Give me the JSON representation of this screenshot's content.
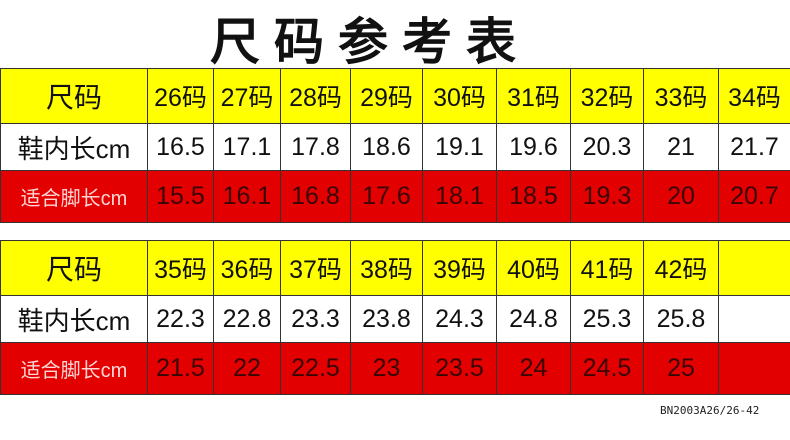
{
  "title": "尺码参考表",
  "tables": [
    {
      "labels": [
        "尺码",
        "鞋内长cm",
        "适合脚长cm"
      ],
      "sizes": [
        "26码",
        "27码",
        "28码",
        "29码",
        "30码",
        "31码",
        "32码",
        "33码",
        "34码"
      ],
      "inner": [
        "16.5",
        "17.1",
        "17.8",
        "18.6",
        "19.1",
        "19.6",
        "20.3",
        "21",
        "21.7"
      ],
      "foot": [
        "15.5",
        "16.1",
        "16.8",
        "17.6",
        "18.1",
        "18.5",
        "19.3",
        "20",
        "20.7"
      ]
    },
    {
      "labels": [
        "尺码",
        "鞋内长cm",
        "适合脚长cm"
      ],
      "sizes": [
        "35码",
        "36码",
        "37码",
        "38码",
        "39码",
        "40码",
        "41码",
        "42码",
        ""
      ],
      "inner": [
        "22.3",
        "22.8",
        "23.3",
        "23.8",
        "24.3",
        "24.8",
        "25.3",
        "25.8",
        ""
      ],
      "foot": [
        "21.5",
        "22",
        "22.5",
        "23",
        "23.5",
        "24",
        "24.5",
        "25",
        ""
      ]
    }
  ],
  "footer": "BN2003A26/26-42",
  "colors": {
    "header": "#ffff00",
    "foot_row": "#e30000"
  }
}
